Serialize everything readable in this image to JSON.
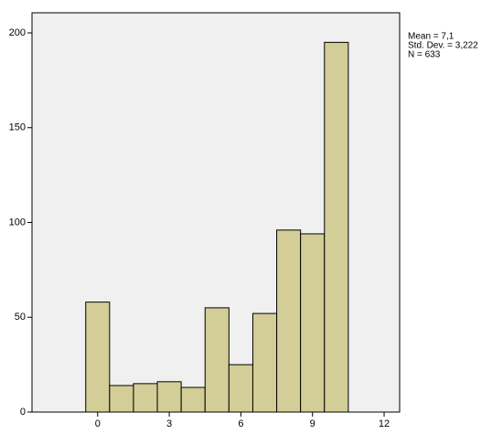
{
  "chart_data": {
    "type": "histogram",
    "bins": [
      -0.5,
      0.5,
      1.5,
      2.5,
      3.5,
      4.5,
      5.5,
      6.5,
      7.5,
      8.5,
      9.5,
      10.5
    ],
    "values": [
      58,
      14,
      15,
      16,
      13,
      55,
      25,
      52,
      96,
      94,
      195
    ],
    "color": "#d3ce97",
    "xlim": [
      -2.75,
      12.65
    ],
    "xticks": [
      0,
      3,
      6,
      9,
      12
    ],
    "ylim": [
      0,
      210.6
    ],
    "yticks": [
      0,
      50,
      100,
      150,
      200
    ],
    "annotations": [
      "Mean = 7,1",
      "Std. Dev. = 3,222",
      "N = 633"
    ]
  }
}
